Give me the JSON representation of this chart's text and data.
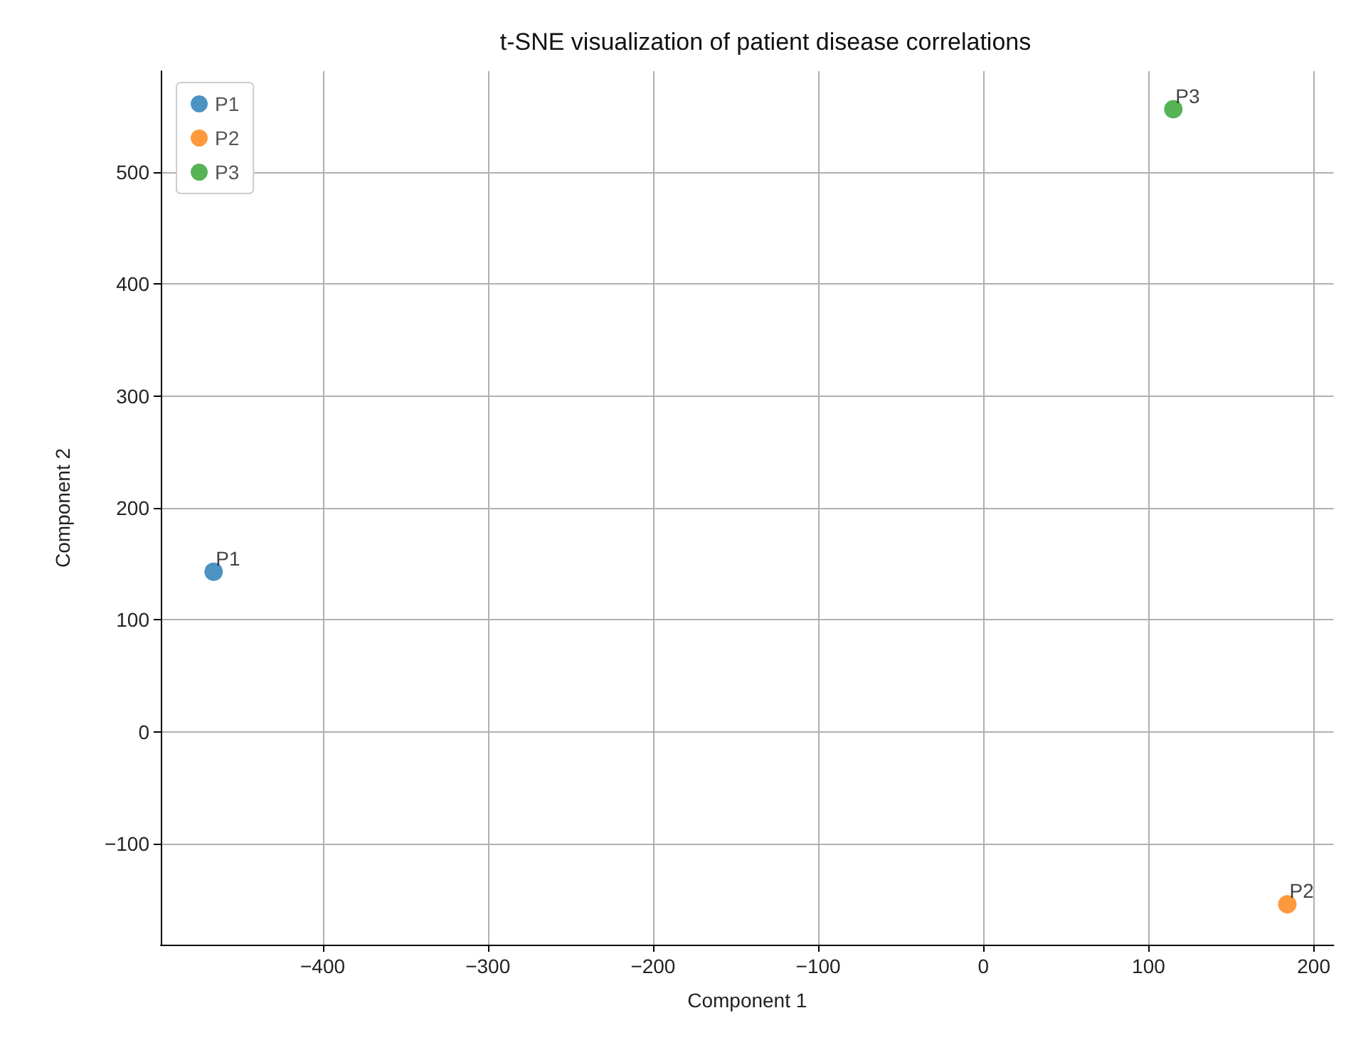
{
  "chart_data": {
    "type": "scatter",
    "title": "t-SNE visualization of patient disease correlations",
    "xlabel": "Component 1",
    "ylabel": "Component 2",
    "series": [
      {
        "name": "P1",
        "color": "#1f77b4",
        "x": [
          -466
        ],
        "values": [
          143
        ]
      },
      {
        "name": "P2",
        "color": "#ff7f0e",
        "x": [
          184
        ],
        "values": [
          -154
        ]
      },
      {
        "name": "P3",
        "color": "#2ca02c",
        "x": [
          115
        ],
        "values": [
          556
        ]
      }
    ],
    "xlim": [
      -498,
      212
    ],
    "xticks": [
      -400,
      -300,
      -200,
      -100,
      0,
      100,
      200
    ],
    "ylim": [
      -190,
      590
    ],
    "yticks": [
      -100,
      0,
      100,
      200,
      300,
      400,
      500
    ],
    "grid": true,
    "legend": "top left",
    "marker": "circle"
  }
}
